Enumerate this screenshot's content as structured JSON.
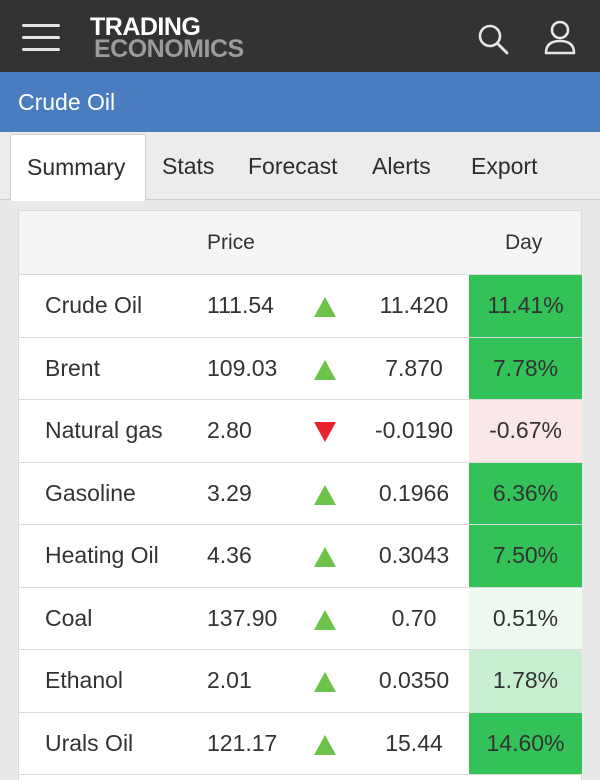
{
  "header": {
    "logo_line1": "TRADING",
    "logo_line2": "ECONOMICS",
    "menu_icon": "hamburger-menu-icon",
    "search_icon": "search-icon",
    "user_icon": "user-icon",
    "bar_color": "#333333"
  },
  "page": {
    "title": "Crude Oil",
    "title_bar_color": "#4a7cc0"
  },
  "tabs": [
    {
      "label": "Summary",
      "active": true
    },
    {
      "label": "Stats",
      "active": false
    },
    {
      "label": "Forecast",
      "active": false
    },
    {
      "label": "Alerts",
      "active": false
    },
    {
      "label": "Export",
      "active": false
    }
  ],
  "table": {
    "columns": {
      "price": "Price",
      "day": "Day"
    },
    "rows": [
      {
        "name": "Crude Oil",
        "price": "111.54",
        "direction": "up",
        "change": "11.420",
        "pct": "11.41%",
        "pct_bg": "#33c257"
      },
      {
        "name": "Brent",
        "price": "109.03",
        "direction": "up",
        "change": "7.870",
        "pct": "7.78%",
        "pct_bg": "#33c257"
      },
      {
        "name": "Natural gas",
        "price": "2.80",
        "direction": "down",
        "change": "-0.0190",
        "pct": "-0.67%",
        "pct_bg": "#fbe6e8"
      },
      {
        "name": "Gasoline",
        "price": "3.29",
        "direction": "up",
        "change": "0.1966",
        "pct": "6.36%",
        "pct_bg": "#33c257"
      },
      {
        "name": "Heating Oil",
        "price": "4.36",
        "direction": "up",
        "change": "0.3043",
        "pct": "7.50%",
        "pct_bg": "#33c257"
      },
      {
        "name": "Coal",
        "price": "137.90",
        "direction": "up",
        "change": "0.70",
        "pct": "0.51%",
        "pct_bg": "#eef9f0"
      },
      {
        "name": "Ethanol",
        "price": "2.01",
        "direction": "up",
        "change": "0.0350",
        "pct": "1.78%",
        "pct_bg": "#c9efd1"
      },
      {
        "name": "Urals Oil",
        "price": "121.17",
        "direction": "up",
        "change": "15.44",
        "pct": "14.60%",
        "pct_bg": "#33c257"
      }
    ],
    "up_color": "#6cc24a",
    "down_color": "#e8232b"
  }
}
